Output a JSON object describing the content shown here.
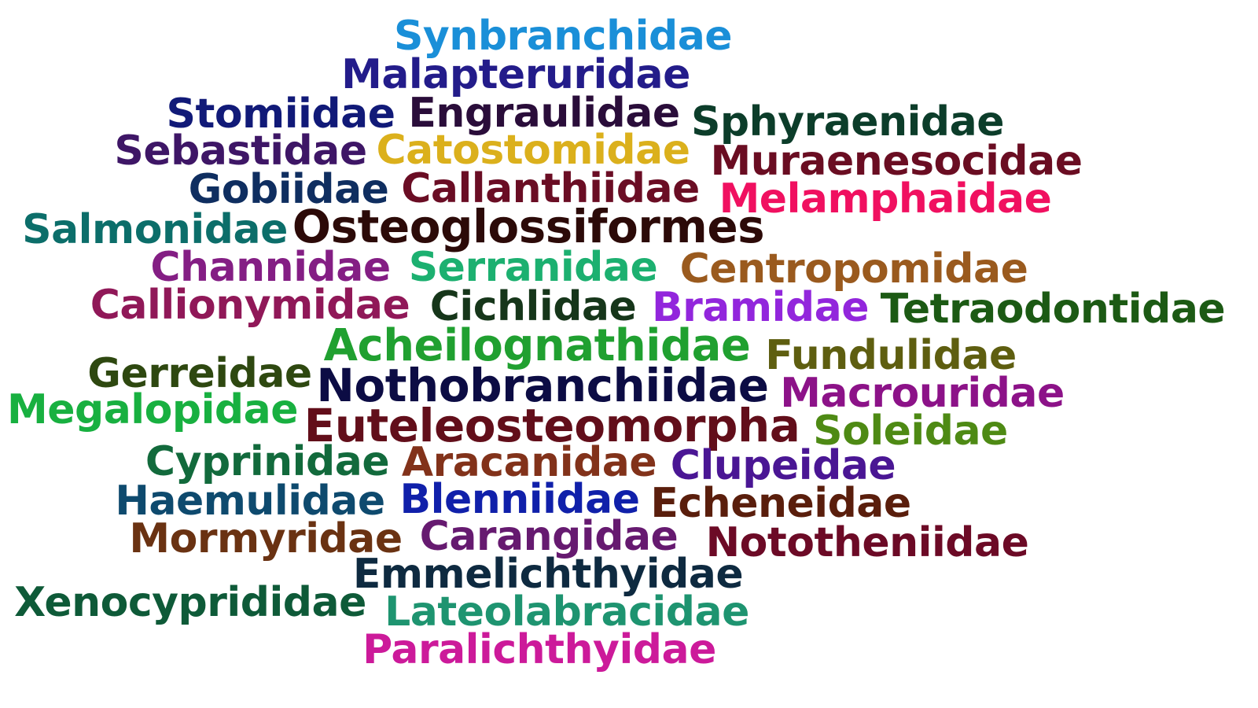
{
  "words": [
    {
      "text": "Synbranchidae",
      "color": "#1a8fd8"
    },
    {
      "text": "Malapteruridae",
      "color": "#231c8a"
    },
    {
      "text": "Stomiidae",
      "color": "#111a78"
    },
    {
      "text": "Engraulidae",
      "color": "#2a0d3a"
    },
    {
      "text": "Sphyraenidae",
      "color": "#0c3d2a"
    },
    {
      "text": "Sebastidae",
      "color": "#3e1666"
    },
    {
      "text": "Catostomidae",
      "color": "#dbb01c"
    },
    {
      "text": "Muraenesocidae",
      "color": "#6a0d22"
    },
    {
      "text": "Gobiidae",
      "color": "#0f2e60"
    },
    {
      "text": "Callanthiidae",
      "color": "#6a0d24"
    },
    {
      "text": "Melamphaidae",
      "color": "#f01060"
    },
    {
      "text": "Salmonidae",
      "color": "#0c6e6a"
    },
    {
      "text": "Osteoglossiformes",
      "color": "#2c0a08"
    },
    {
      "text": "Channidae",
      "color": "#841e84"
    },
    {
      "text": "Serranidae",
      "color": "#1cb070"
    },
    {
      "text": "Centropomidae",
      "color": "#9a5a1e"
    },
    {
      "text": "Callionymidae",
      "color": "#901858"
    },
    {
      "text": "Cichlidae",
      "color": "#16361a"
    },
    {
      "text": "Bramidae",
      "color": "#9226dc"
    },
    {
      "text": "Tetraodontidae",
      "color": "#1c5a14"
    },
    {
      "text": "Acheilognathidae",
      "color": "#20a030"
    },
    {
      "text": "Fundulidae",
      "color": "#5e5e10"
    },
    {
      "text": "Gerreidae",
      "color": "#2e4810"
    },
    {
      "text": "Nothobranchiidae",
      "color": "#0c0c44"
    },
    {
      "text": "Macrouridae",
      "color": "#8c1288"
    },
    {
      "text": "Megalopidae",
      "color": "#18b040"
    },
    {
      "text": "Euteleosteomorpha",
      "color": "#620e1a"
    },
    {
      "text": "Soleidae",
      "color": "#4e8a14"
    },
    {
      "text": "Cyprinidae",
      "color": "#126a3c"
    },
    {
      "text": "Aracanidae",
      "color": "#82321a"
    },
    {
      "text": "Clupeidae",
      "color": "#4a1694"
    },
    {
      "text": "Haemulidae",
      "color": "#0e4a6e"
    },
    {
      "text": "Blenniidae",
      "color": "#1020aa"
    },
    {
      "text": "Echeneidae",
      "color": "#5a1e0c"
    },
    {
      "text": "Mormyridae",
      "color": "#6a3212"
    },
    {
      "text": "Carangidae",
      "color": "#661a70"
    },
    {
      "text": "Nototheniidae",
      "color": "#6c0a26"
    },
    {
      "text": "Emmelichthyidae",
      "color": "#0e2a40"
    },
    {
      "text": "Xenocyprididae",
      "color": "#0e5a38"
    },
    {
      "text": "Lateolabracidae",
      "color": "#1e9470"
    },
    {
      "text": "Paralichthyidae",
      "color": "#cc1a9a"
    }
  ]
}
